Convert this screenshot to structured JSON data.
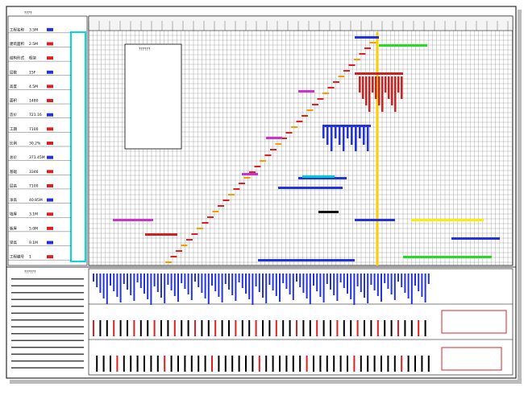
{
  "header": {
    "title": "????",
    "legend_title": "??????",
    "notes_title": "??????"
  },
  "left_table": {
    "rows": [
      {
        "label": "工程名称",
        "value": "3.5M"
      },
      {
        "label": "建筑面积",
        "value": "2.5M"
      },
      {
        "label": "结构形式",
        "value": "框架"
      },
      {
        "label": "层数",
        "value": "15F"
      },
      {
        "label": "高度",
        "value": "4.5M"
      },
      {
        "label": "面积",
        "value": "1480"
      },
      {
        "label": "造价",
        "value": "721.16"
      },
      {
        "label": "工期",
        "value": "7100"
      },
      {
        "label": "比例",
        "value": "30.2%"
      },
      {
        "label": "总价",
        "value": "371.45M"
      },
      {
        "label": "基础",
        "value": "3346"
      },
      {
        "label": "层高",
        "value": "7100"
      },
      {
        "label": "净高",
        "value": "40.85M"
      },
      {
        "label": "墙厚",
        "value": "3.1M"
      },
      {
        "label": "板厚",
        "value": "5.0M"
      },
      {
        "label": "梁高",
        "value": "9.1M"
      },
      {
        "label": "工程编号",
        "value": "1"
      }
    ]
  }
}
